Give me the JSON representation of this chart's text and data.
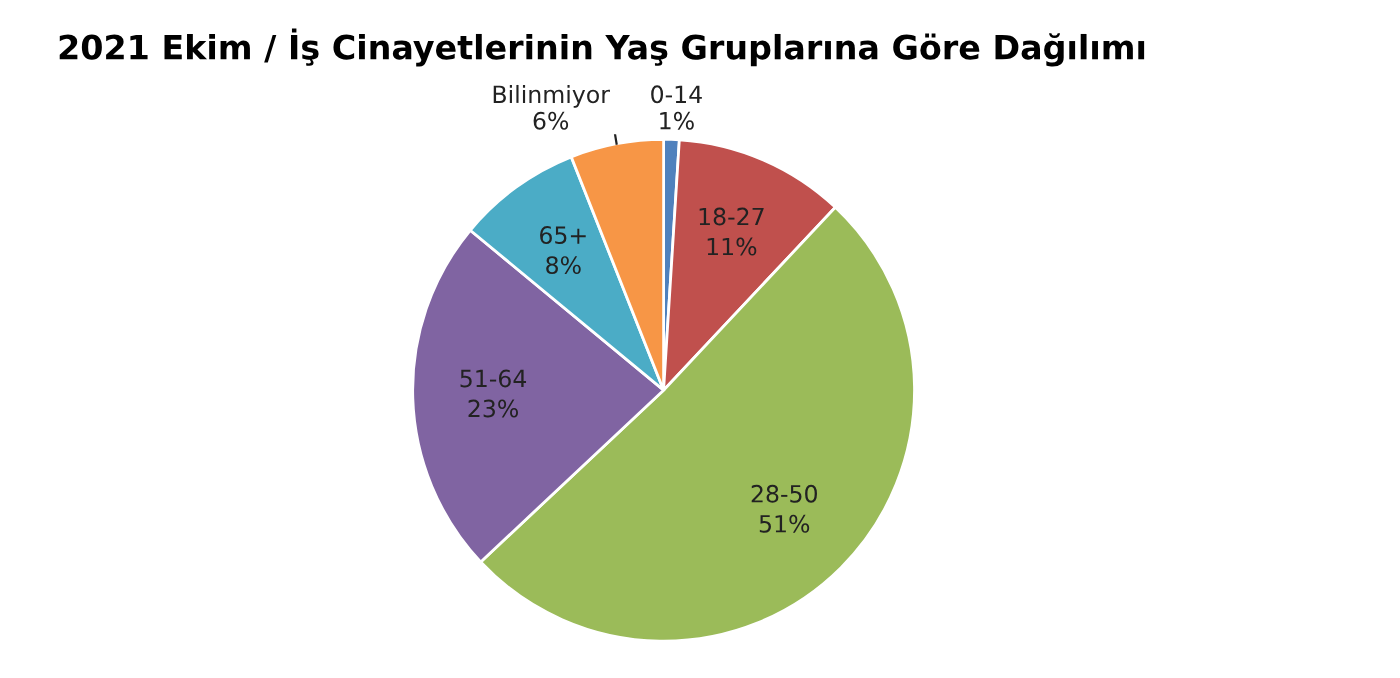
{
  "chart_data": {
    "type": "pie",
    "title": "2021 Ekim / İş Cinayetlerinin Yaş Gruplarına Göre Dağılımı",
    "categories": [
      "0-14",
      "18-27",
      "28-50",
      "51-64",
      "65+",
      "Bilinmiyor"
    ],
    "values": [
      1,
      11,
      51,
      23,
      8,
      6
    ],
    "value_labels": [
      "1%",
      "11%",
      "51%",
      "23%",
      "8%",
      "6%"
    ],
    "colors": [
      "#4f81bd",
      "#c0504d",
      "#9bbb59",
      "#8064a2",
      "#4bacc6",
      "#f79646"
    ],
    "legend": false
  }
}
